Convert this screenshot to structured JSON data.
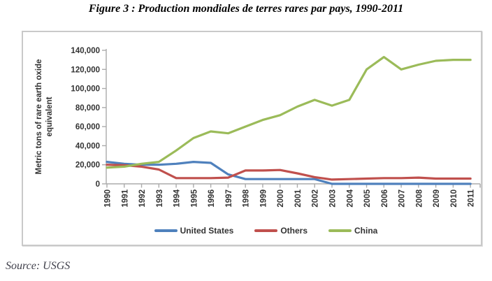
{
  "title": "Figure 3 : Production mondiales de terres rares par pays, 1990-2011",
  "source": "Source: USGS",
  "colors": {
    "united_states": "#4F81BD",
    "others": "#C0504D",
    "china": "#9BBB59",
    "axis": "#ABABAB",
    "tick_text": "#333333",
    "frame_border": "#c9c9c9"
  },
  "chart_data": {
    "type": "line",
    "title": "",
    "xlabel": "",
    "ylabel": "Metric tons of rare earth oxide equivalent",
    "ylabel_lines": [
      "Metric tons of rare earth oxide",
      "equivalent"
    ],
    "x": [
      1990,
      1991,
      1992,
      1993,
      1994,
      1995,
      1996,
      1997,
      1998,
      1999,
      2000,
      2001,
      2002,
      2003,
      2004,
      2005,
      2006,
      2007,
      2008,
      2009,
      2010,
      2011
    ],
    "x_tick_labels": [
      "1990",
      "1991",
      "1992",
      "1993",
      "1994",
      "1995",
      "1996",
      "1997",
      "1998",
      "1999",
      "2000",
      "2001",
      "2002",
      "2003",
      "2004",
      "2005",
      "2006",
      "2007",
      "2008",
      "2009",
      "2010",
      "2011"
    ],
    "ylim": [
      0,
      140000
    ],
    "y_ticks": [
      0,
      20000,
      40000,
      60000,
      80000,
      100000,
      120000,
      140000
    ],
    "y_tick_labels": [
      "0",
      "20,000",
      "40,000",
      "60,000",
      "80,000",
      "100,000",
      "120,000",
      "140,000"
    ],
    "grid": false,
    "legend_position": "bottom",
    "series": [
      {
        "name": "United States",
        "color": "#4F81BD",
        "values": [
          23000,
          21000,
          20000,
          20000,
          21000,
          23000,
          22000,
          10000,
          5000,
          5000,
          5000,
          5000,
          5000,
          0,
          0,
          0,
          0,
          0,
          0,
          0,
          0,
          0
        ]
      },
      {
        "name": "Others",
        "color": "#C0504D",
        "values": [
          20000,
          19500,
          18000,
          15000,
          6000,
          6000,
          6000,
          6500,
          14000,
          14000,
          14500,
          11000,
          7000,
          4500,
          5000,
          5500,
          6000,
          6000,
          6500,
          5500,
          5500,
          5500
        ]
      },
      {
        "name": "China",
        "color": "#9BBB59",
        "values": [
          17000,
          18000,
          21000,
          23000,
          35000,
          48000,
          55000,
          53000,
          60000,
          67000,
          72000,
          81000,
          88000,
          82000,
          88000,
          120000,
          133000,
          120000,
          125000,
          129000,
          130000,
          130000
        ]
      }
    ]
  }
}
